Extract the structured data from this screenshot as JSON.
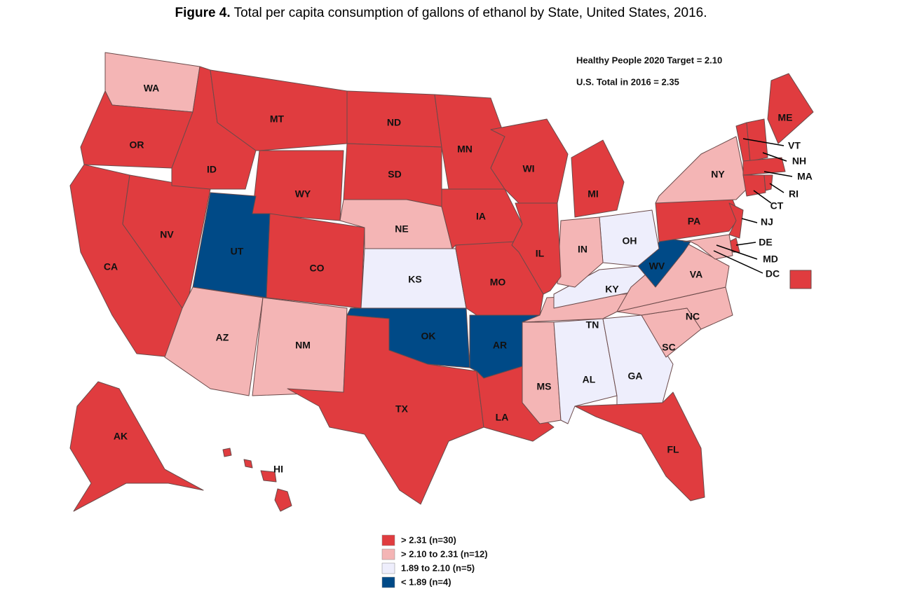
{
  "title_bold": "Figure 4.",
  "title": "Total per capita consumption of gallons of ethanol by State, United States, 2016.",
  "annotations": [
    "Healthy People 2020 Target = 2.10",
    "U.S. Total in 2016 = 2.35"
  ],
  "legend": [
    {
      "label": "> 2.31 (n=30)",
      "color": "#e03c3f"
    },
    {
      "label": "> 2.10 to 2.31 (n=12)",
      "color": "#f4b5b5"
    },
    {
      "label": "1.89 to 2.10 (n=5)",
      "color": "#eeeefc"
    },
    {
      "label": "< 1.89 (n=4)",
      "color": "#004a87"
    }
  ],
  "states": [
    {
      "label": "WA",
      "color": "#f4b5b5"
    },
    {
      "label": "OR",
      "color": "#e03c3f"
    },
    {
      "label": "CA",
      "color": "#e03c3f"
    },
    {
      "label": "NV",
      "color": "#e03c3f"
    },
    {
      "label": "ID",
      "color": "#e03c3f"
    },
    {
      "label": "MT",
      "color": "#e03c3f"
    },
    {
      "label": "WY",
      "color": "#e03c3f"
    },
    {
      "label": "UT",
      "color": "#004a87"
    },
    {
      "label": "AZ",
      "color": "#f4b5b5"
    },
    {
      "label": "NM",
      "color": "#f4b5b5"
    },
    {
      "label": "CO",
      "color": "#e03c3f"
    },
    {
      "label": "ND",
      "color": "#e03c3f"
    },
    {
      "label": "SD",
      "color": "#e03c3f"
    },
    {
      "label": "NE",
      "color": "#f4b5b5"
    },
    {
      "label": "KS",
      "color": "#eeeefc"
    },
    {
      "label": "OK",
      "color": "#004a87"
    },
    {
      "label": "TX",
      "color": "#e03c3f"
    },
    {
      "label": "MN",
      "color": "#e03c3f"
    },
    {
      "label": "IA",
      "color": "#e03c3f"
    },
    {
      "label": "MO",
      "color": "#e03c3f"
    },
    {
      "label": "AR",
      "color": "#004a87"
    },
    {
      "label": "LA",
      "color": "#e03c3f"
    },
    {
      "label": "MS",
      "color": "#f4b5b5"
    },
    {
      "label": "AL",
      "color": "#eeeefc"
    },
    {
      "label": "GA",
      "color": "#eeeefc"
    },
    {
      "label": "FL",
      "color": "#e03c3f"
    },
    {
      "label": "SC",
      "color": "#f4b5b5"
    },
    {
      "label": "NC",
      "color": "#f4b5b5"
    },
    {
      "label": "TN",
      "color": "#f4b5b5"
    },
    {
      "label": "KY",
      "color": "#eeeefc"
    },
    {
      "label": "VA",
      "color": "#f4b5b5"
    },
    {
      "label": "WV",
      "color": "#004a87"
    },
    {
      "label": "OH",
      "color": "#eeeefc"
    },
    {
      "label": "IN",
      "color": "#f4b5b5"
    },
    {
      "label": "IL",
      "color": "#e03c3f"
    },
    {
      "label": "WI",
      "color": "#e03c3f"
    },
    {
      "label": "MI",
      "color": "#e03c3f"
    },
    {
      "label": "PA",
      "color": "#e03c3f"
    },
    {
      "label": "NY",
      "color": "#f4b5b5"
    },
    {
      "label": "NJ",
      "color": "#e03c3f"
    },
    {
      "label": "DE",
      "color": "#e03c3f"
    },
    {
      "label": "MD",
      "color": "#f4b5b5"
    },
    {
      "label": "ME",
      "color": "#e03c3f"
    },
    {
      "label": "VT",
      "color": "#e03c3f"
    },
    {
      "label": "NH",
      "color": "#e03c3f"
    },
    {
      "label": "MA",
      "color": "#e03c3f"
    },
    {
      "label": "CT",
      "color": "#e03c3f"
    },
    {
      "label": "RI",
      "color": "#e03c3f"
    },
    {
      "label": "DC",
      "color": "#e03c3f"
    },
    {
      "label": "AK",
      "color": "#e03c3f"
    },
    {
      "label": "HI",
      "color": "#e03c3f"
    }
  ]
}
